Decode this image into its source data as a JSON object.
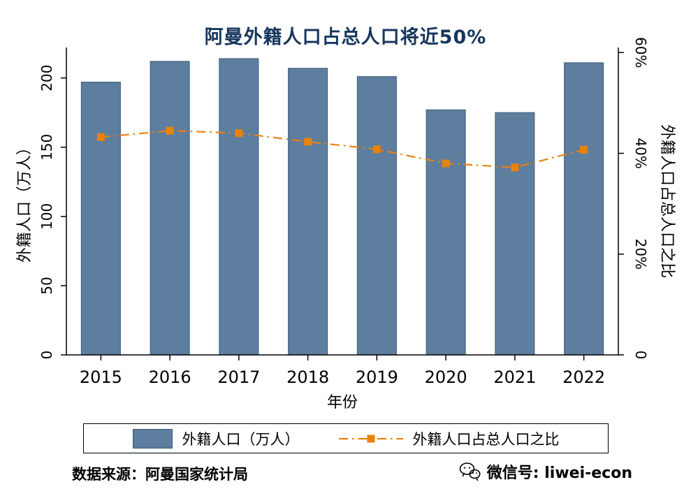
{
  "colors": {
    "bar": "#5d7e9f",
    "bar_border": "#3c5a78",
    "line": "#e8820c",
    "title": "#17365d"
  },
  "chart_data": {
    "type": "bar+line",
    "title": "阿曼外籍人口占总人口将近50%",
    "categories": [
      "2015",
      "2016",
      "2017",
      "2018",
      "2019",
      "2020",
      "2021",
      "2022"
    ],
    "series": [
      {
        "name": "外籍人口（万人）",
        "type": "bar",
        "axis": "left",
        "values": [
          197,
          212,
          214,
          207,
          201,
          177,
          175,
          211
        ]
      },
      {
        "name": "外籍人口占总人口之比",
        "type": "line",
        "axis": "right",
        "unit": "%",
        "values": [
          43.2,
          44.5,
          44.0,
          42.3,
          40.8,
          38.0,
          37.2,
          40.7
        ]
      }
    ],
    "x_axis": {
      "title": "年份"
    },
    "left_axis": {
      "title": "外籍人口（万人）",
      "max": 222,
      "ticks": [
        {
          "value": 0,
          "label": "0"
        },
        {
          "value": 50,
          "label": "50"
        },
        {
          "value": 100,
          "label": "100"
        },
        {
          "value": 150,
          "label": "150"
        },
        {
          "value": 200,
          "label": "200"
        }
      ]
    },
    "right_axis": {
      "title": "外籍人口占总人口之比",
      "max": 61,
      "ticks": [
        {
          "value": 0,
          "label": "0"
        },
        {
          "value": 20,
          "label": "20%"
        },
        {
          "value": 40,
          "label": "40%"
        },
        {
          "value": 60,
          "label": "60%"
        }
      ]
    },
    "legend_position": "bottom",
    "grid": false
  },
  "footer": {
    "source": "数据来源：阿曼国家统计局",
    "wechat": "微信号: liwei-econ"
  }
}
